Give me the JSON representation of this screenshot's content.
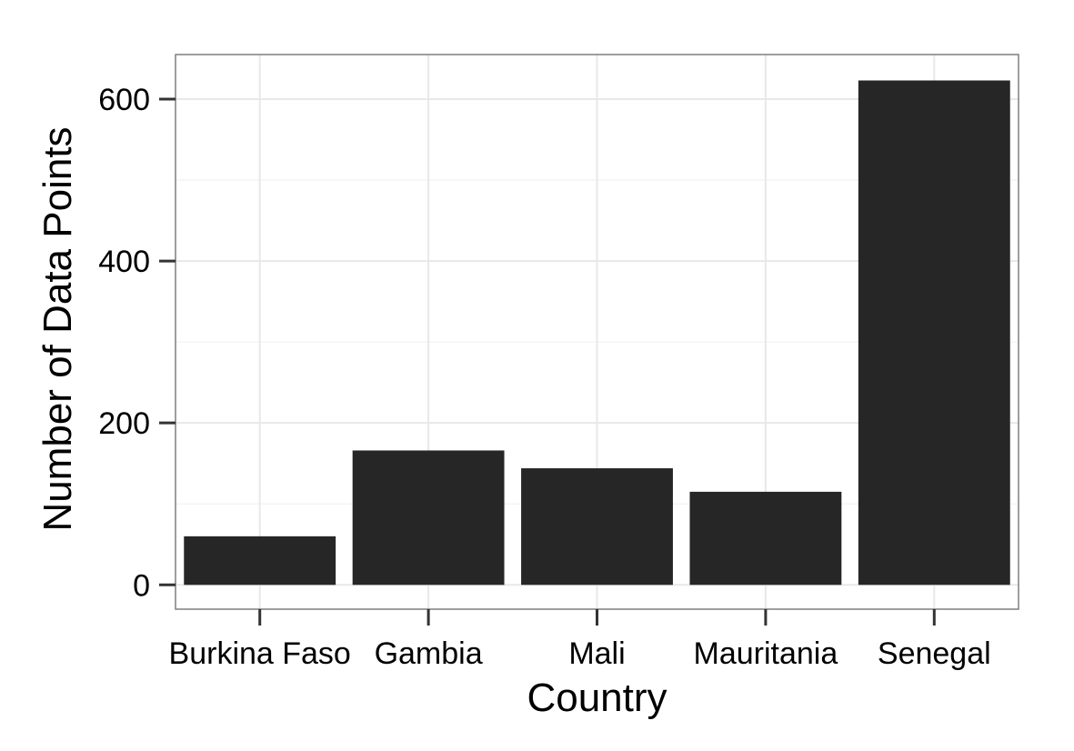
{
  "chart_data": {
    "type": "bar",
    "title": "",
    "xlabel": "Country",
    "ylabel": "Number of Data Points",
    "categories": [
      "Burkina Faso",
      "Gambia",
      "Mali",
      "Mauritania",
      "Senegal"
    ],
    "values": [
      60,
      166,
      144,
      115,
      623
    ],
    "ylim": [
      -30,
      655
    ],
    "yticks": [
      0,
      200,
      400,
      600
    ],
    "ytick_labels": [
      "0",
      "200",
      "400",
      "600"
    ],
    "grid": true,
    "legend": "none",
    "colors": {
      "bar": "#262626",
      "panel_border": "#7f7f7f",
      "grid_major": "#e8e8e8",
      "grid_minor": "#f4f4f4",
      "tick": "#333333"
    }
  }
}
